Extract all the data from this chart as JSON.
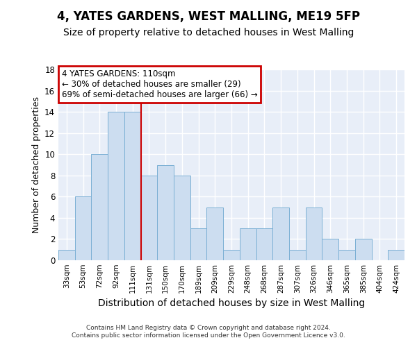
{
  "title": "4, YATES GARDENS, WEST MALLING, ME19 5FP",
  "subtitle": "Size of property relative to detached houses in West Malling",
  "xlabel": "Distribution of detached houses by size in West Malling",
  "ylabel": "Number of detached properties",
  "categories": [
    "33sqm",
    "53sqm",
    "72sqm",
    "92sqm",
    "111sqm",
    "131sqm",
    "150sqm",
    "170sqm",
    "189sqm",
    "209sqm",
    "229sqm",
    "248sqm",
    "268sqm",
    "287sqm",
    "307sqm",
    "326sqm",
    "346sqm",
    "365sqm",
    "385sqm",
    "404sqm",
    "424sqm"
  ],
  "values": [
    1,
    6,
    10,
    14,
    14,
    8,
    9,
    8,
    3,
    5,
    1,
    3,
    3,
    5,
    1,
    5,
    2,
    1,
    2,
    0,
    1
  ],
  "bar_color": "#ccddf0",
  "bar_edge_color": "#7aafd4",
  "vline_color": "#cc0000",
  "vline_index": 4,
  "annotation_line1": "4 YATES GARDENS: 110sqm",
  "annotation_line2": "← 30% of detached houses are smaller (29)",
  "annotation_line3": "69% of semi-detached houses are larger (66) →",
  "annotation_box_color": "#cc0000",
  "ylim": [
    0,
    18
  ],
  "yticks": [
    0,
    2,
    4,
    6,
    8,
    10,
    12,
    14,
    16,
    18
  ],
  "background_color": "#ffffff",
  "plot_background": "#e8eef8",
  "grid_color": "#ffffff",
  "title_fontsize": 12,
  "subtitle_fontsize": 10,
  "xlabel_fontsize": 10,
  "ylabel_fontsize": 9,
  "footer": "Contains HM Land Registry data © Crown copyright and database right 2024.\nContains public sector information licensed under the Open Government Licence v3.0."
}
